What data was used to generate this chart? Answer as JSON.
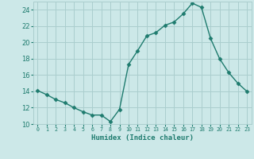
{
  "x": [
    0,
    1,
    2,
    3,
    4,
    5,
    6,
    7,
    8,
    9,
    10,
    11,
    12,
    13,
    14,
    15,
    16,
    17,
    18,
    19,
    20,
    21,
    22,
    23
  ],
  "y": [
    14.1,
    13.6,
    13.0,
    12.6,
    12.0,
    11.5,
    11.1,
    11.1,
    10.3,
    11.8,
    17.3,
    19.0,
    20.8,
    21.2,
    22.1,
    22.5,
    23.5,
    24.8,
    24.3,
    20.5,
    18.0,
    16.3,
    15.0,
    14.0
  ],
  "xlabel": "Humidex (Indice chaleur)",
  "xlim": [
    -0.5,
    23.5
  ],
  "ylim": [
    10,
    25
  ],
  "yticks": [
    10,
    12,
    14,
    16,
    18,
    20,
    22,
    24
  ],
  "xtick_labels": [
    "0",
    "1",
    "2",
    "3",
    "4",
    "5",
    "6",
    "7",
    "8",
    "9",
    "10",
    "11",
    "12",
    "13",
    "14",
    "15",
    "16",
    "17",
    "18",
    "19",
    "20",
    "21",
    "22",
    "23"
  ],
  "line_color": "#1e7b6e",
  "marker": "D",
  "marker_size": 2.5,
  "bg_color": "#cce8e8",
  "grid_color": "#aacece",
  "label_color": "#1e7b6e",
  "tick_color": "#1e7b6e"
}
